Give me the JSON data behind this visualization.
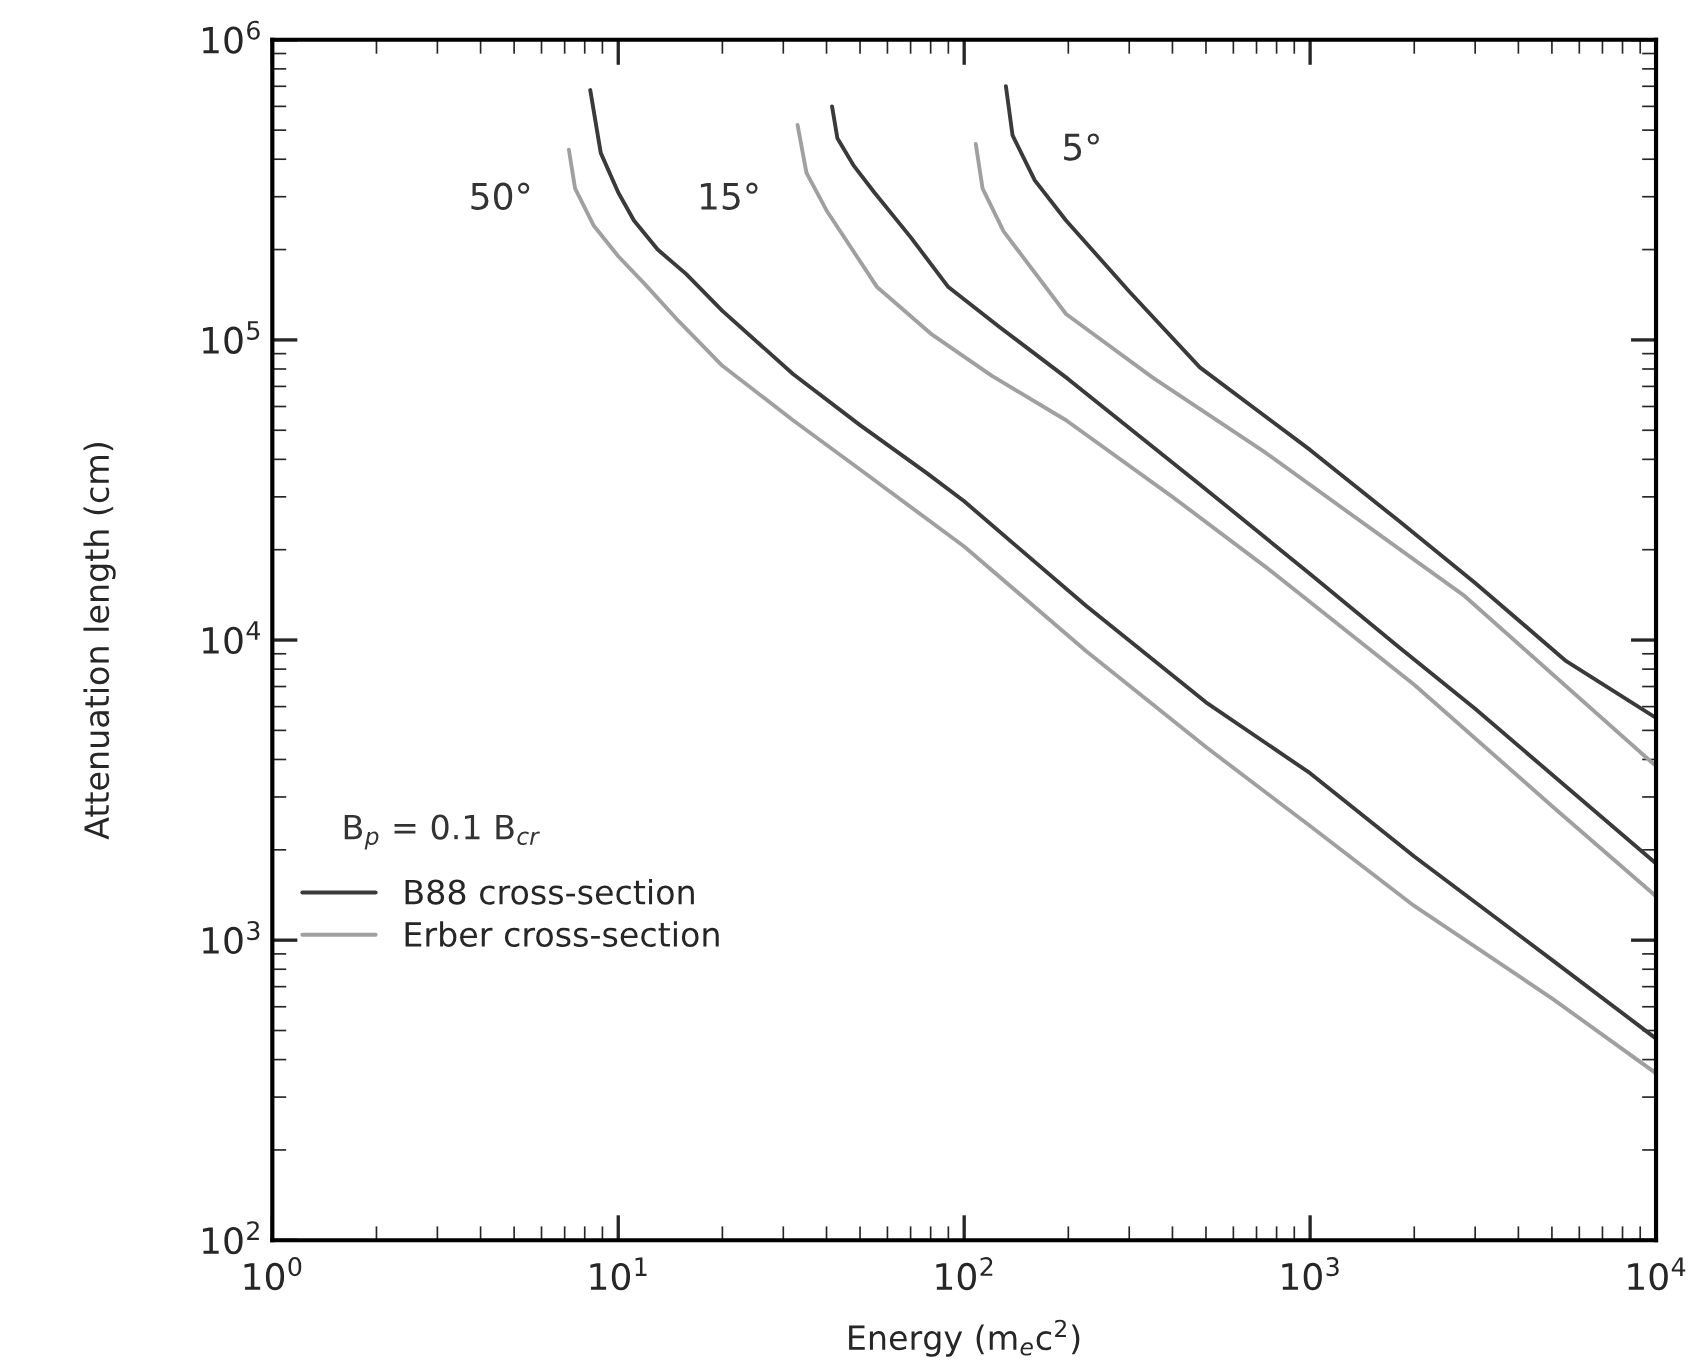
{
  "chart_data": {
    "type": "line",
    "xlabel": "Energy (m$_{e}$c$^{2}$)",
    "ylabel": "Attenuation length (cm)",
    "log": "xy",
    "grid": false,
    "legend": "left",
    "line_style": "solid",
    "xlim": [
      1,
      10000
    ],
    "xticks": [
      {
        "value": 1,
        "label": "10$^{0}$"
      },
      {
        "value": 10,
        "label": "10$^{1}$"
      },
      {
        "value": 100,
        "label": "10$^{2}$"
      },
      {
        "value": 1000,
        "label": "10$^{3}$"
      },
      {
        "value": 10000,
        "label": "10$^{4}$"
      }
    ],
    "ylim": [
      100,
      1000000
    ],
    "yticks": [
      {
        "value": 100,
        "label": "10$^{2}$"
      },
      {
        "value": 1000,
        "label": "10$^{3}$"
      },
      {
        "value": 10000,
        "label": "10$^{4}$"
      },
      {
        "value": 100000,
        "label": "10$^{5}$"
      },
      {
        "value": 1000000,
        "label": "10$^{6}$"
      }
    ],
    "series": [
      {
        "name": "B88 cross-section",
        "color": "#3a3a3a",
        "x": [
          8.3,
          8.9,
          10,
          11.1,
          13,
          15.7,
          20,
          32,
          50,
          78,
          100,
          225,
          500,
          1000,
          2000,
          5000,
          10000
        ],
        "values": [
          680000,
          420000,
          310000,
          250000,
          200000,
          166000,
          125000,
          77000,
          52000,
          36000,
          29000,
          13000,
          6200,
          3600,
          1900,
          860,
          470
        ]
      },
      {
        "name": "Erber cross-section",
        "color": "#a0a0a0",
        "x": [
          7.2,
          7.5,
          8.5,
          10,
          11.9,
          15,
          20,
          32,
          50,
          100,
          225,
          500,
          1000,
          2000,
          5000,
          10000
        ],
        "values": [
          430000,
          320000,
          240000,
          190000,
          154000,
          115000,
          82000,
          54000,
          37000,
          20500,
          9200,
          4400,
          2400,
          1300,
          640,
          360
        ]
      },
      {
        "color": "#3a3a3a",
        "x": [
          41.5,
          43,
          48,
          55,
          70,
          90,
          127,
          200,
          480,
          1000,
          1800,
          3000,
          10000
        ],
        "values": [
          600000,
          470000,
          380000,
          310000,
          220000,
          150000,
          110000,
          74000,
          33000,
          16600,
          9500,
          5900,
          1800
        ]
      },
      {
        "color": "#a0a0a0",
        "x": [
          33,
          35,
          40,
          56,
          80,
          120,
          197,
          400,
          745,
          2000,
          5000,
          10000
        ],
        "values": [
          520000,
          360000,
          270000,
          150000,
          105000,
          76000,
          54000,
          30000,
          17500,
          7100,
          2800,
          1400
        ]
      },
      {
        "color": "#3a3a3a",
        "x": [
          132,
          138,
          160,
          197,
          300,
          480,
          1000,
          1800,
          3000,
          5500,
          10000
        ],
        "values": [
          700000,
          480000,
          340000,
          250000,
          145000,
          81000,
          43000,
          25000,
          15500,
          8500,
          5500
        ]
      },
      {
        "color": "#a0a0a0",
        "x": [
          108,
          113,
          130,
          197,
          350,
          745,
          2800,
          10000
        ],
        "values": [
          450000,
          320000,
          230000,
          122000,
          75000,
          42000,
          14000,
          3800
        ]
      }
    ],
    "annotations": [
      "50°",
      "15°",
      "5°",
      "B$_{p}$ = 0.1 B$_{cr}$"
    ]
  }
}
